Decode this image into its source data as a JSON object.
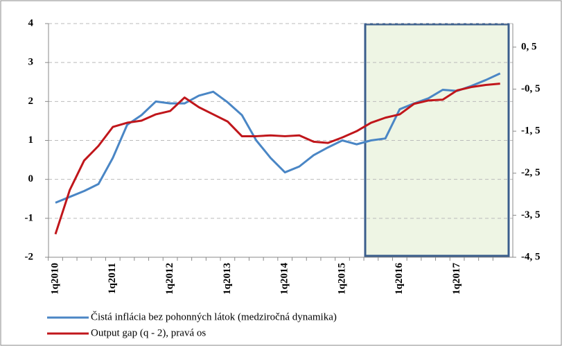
{
  "chart_data": {
    "type": "line",
    "categories": [
      "1q2010",
      null,
      null,
      null,
      "1q2011",
      null,
      null,
      null,
      "1q2012",
      null,
      null,
      null,
      "1q2013",
      null,
      null,
      null,
      "1q2014",
      null,
      null,
      null,
      "1q2015",
      null,
      null,
      null,
      "1q2016",
      null,
      null,
      null,
      "1q2017",
      null,
      null,
      null
    ],
    "series": [
      {
        "name": "Čistá inflácia bez pohonných látok (medziročná dynamika)",
        "color": "#4a86c5",
        "values": [
          -0.6,
          -0.45,
          -0.3,
          -0.12,
          0.55,
          1.4,
          1.65,
          2.0,
          1.95,
          1.95,
          2.15,
          2.25,
          1.98,
          1.65,
          1.0,
          0.55,
          0.18,
          0.33,
          0.62,
          0.82,
          1.0,
          0.9,
          1.0,
          1.05,
          1.8,
          1.95,
          2.08,
          2.3,
          2.27,
          2.4,
          2.55,
          2.72
        ]
      },
      {
        "name": "Output gap (q - 2), pravá os",
        "color": "#c0161b",
        "axis": "y2",
        "values": [
          -3.95,
          -2.9,
          -2.2,
          -1.85,
          -1.4,
          -1.3,
          -1.25,
          -1.1,
          -1.02,
          -0.7,
          -0.93,
          -1.1,
          -1.27,
          -1.62,
          -1.62,
          -1.6,
          -1.62,
          -1.6,
          -1.75,
          -1.78,
          -1.65,
          -1.5,
          -1.3,
          -1.18,
          -1.1,
          -0.85,
          -0.77,
          -0.75,
          -0.53,
          -0.45,
          -0.4,
          -0.37
        ]
      }
    ],
    "ylim": [
      -2,
      4
    ],
    "yticks": [
      -2,
      -1,
      0,
      1,
      2,
      3,
      4
    ],
    "y2lim": [
      -4.5,
      1.06
    ],
    "y2ticks": [
      {
        "value": -4.5,
        "label": "-4, 5"
      },
      {
        "value": -3.5,
        "label": "-3, 5"
      },
      {
        "value": -2.5,
        "label": "-2, 5"
      },
      {
        "value": -1.5,
        "label": "-1, 5"
      },
      {
        "value": -0.5,
        "label": "-0, 5"
      },
      {
        "value": 0.5,
        "label": "0, 5"
      }
    ],
    "grid": true
  }
}
